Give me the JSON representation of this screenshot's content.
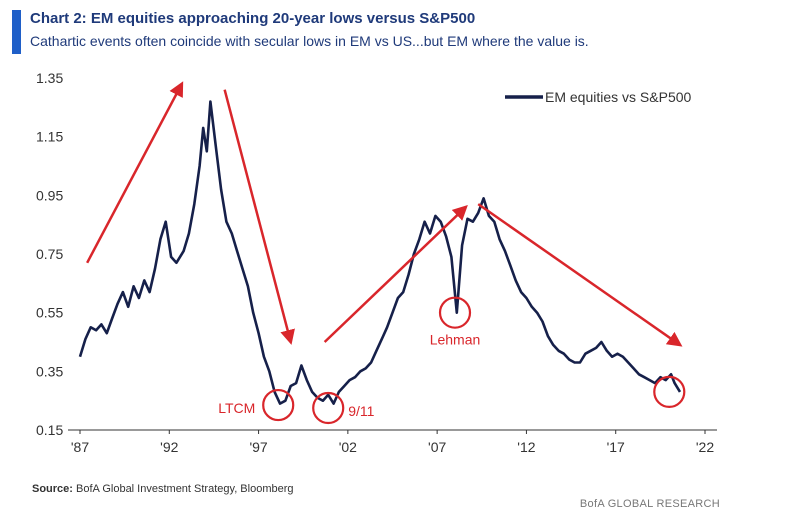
{
  "header": {
    "title": "Chart 2: EM equities approaching 20-year lows versus S&P500",
    "subtitle": "Cathartic events often coincide with secular lows in EM vs US...but EM where the value is."
  },
  "footer": {
    "source_label": "Source:",
    "source_text": "BofA Global Investment Strategy, Bloomberg",
    "brand": "BofA GLOBAL RESEARCH"
  },
  "colors": {
    "series": "#16204a",
    "annotation": "#d9262b",
    "title_accent": "#1f5fc8",
    "title_text": "#1f3a7a"
  },
  "chart_data": {
    "type": "line",
    "title": "",
    "xlabel": "",
    "ylabel": "",
    "ylim": [
      0.15,
      1.35
    ],
    "xlim": [
      1987,
      2022
    ],
    "yticks": [
      0.15,
      0.35,
      0.55,
      0.75,
      0.95,
      1.15,
      1.35
    ],
    "ytick_labels": [
      "0.15",
      "0.35",
      "0.55",
      "0.75",
      "0.95",
      "1.15",
      "1.35"
    ],
    "xticks": [
      1987,
      1992,
      1997,
      2002,
      2007,
      2012,
      2017,
      2022
    ],
    "xtick_labels": [
      "'87",
      "'92",
      "'97",
      "'02",
      "'07",
      "'12",
      "'17",
      "'22"
    ],
    "grid": false,
    "legend": {
      "position": "top-right"
    },
    "series": [
      {
        "name": "EM equities vs S&P500",
        "x": [
          1987.0,
          1987.3,
          1987.6,
          1987.9,
          1988.2,
          1988.5,
          1988.8,
          1989.1,
          1989.4,
          1989.7,
          1990.0,
          1990.3,
          1990.6,
          1990.9,
          1991.2,
          1991.5,
          1991.8,
          1992.1,
          1992.4,
          1992.8,
          1993.1,
          1993.4,
          1993.7,
          1993.9,
          1994.1,
          1994.3,
          1994.6,
          1994.9,
          1995.2,
          1995.5,
          1995.8,
          1996.1,
          1996.4,
          1996.7,
          1997.0,
          1997.3,
          1997.6,
          1997.9,
          1998.2,
          1998.5,
          1998.8,
          1999.1,
          1999.4,
          1999.7,
          2000.0,
          2000.3,
          2000.6,
          2000.9,
          2001.2,
          2001.5,
          2001.8,
          2002.1,
          2002.4,
          2002.7,
          2003.0,
          2003.3,
          2003.6,
          2003.9,
          2004.2,
          2004.5,
          2004.8,
          2005.1,
          2005.4,
          2005.7,
          2006.0,
          2006.3,
          2006.6,
          2006.9,
          2007.2,
          2007.5,
          2007.8,
          2008.1,
          2008.4,
          2008.7,
          2009.0,
          2009.3,
          2009.6,
          2009.9,
          2010.2,
          2010.5,
          2010.8,
          2011.1,
          2011.4,
          2011.7,
          2012.0,
          2012.3,
          2012.6,
          2012.9,
          2013.2,
          2013.5,
          2013.8,
          2014.1,
          2014.4,
          2014.7,
          2015.0,
          2015.3,
          2015.6,
          2015.9,
          2016.2,
          2016.5,
          2016.8,
          2017.1,
          2017.4,
          2017.7,
          2018.0,
          2018.3,
          2018.6,
          2018.9,
          2019.2,
          2019.5,
          2019.8,
          2020.1,
          2020.3,
          2020.6
        ],
        "values": [
          0.4,
          0.46,
          0.5,
          0.49,
          0.51,
          0.48,
          0.53,
          0.58,
          0.62,
          0.57,
          0.64,
          0.6,
          0.66,
          0.62,
          0.7,
          0.8,
          0.86,
          0.74,
          0.72,
          0.76,
          0.82,
          0.92,
          1.05,
          1.18,
          1.1,
          1.27,
          1.12,
          0.97,
          0.86,
          0.82,
          0.76,
          0.7,
          0.64,
          0.55,
          0.48,
          0.4,
          0.35,
          0.28,
          0.24,
          0.25,
          0.3,
          0.31,
          0.37,
          0.32,
          0.28,
          0.26,
          0.25,
          0.27,
          0.24,
          0.28,
          0.3,
          0.32,
          0.33,
          0.35,
          0.36,
          0.38,
          0.42,
          0.46,
          0.5,
          0.55,
          0.6,
          0.62,
          0.68,
          0.75,
          0.8,
          0.86,
          0.82,
          0.88,
          0.86,
          0.81,
          0.74,
          0.55,
          0.78,
          0.87,
          0.86,
          0.89,
          0.94,
          0.88,
          0.86,
          0.8,
          0.76,
          0.71,
          0.66,
          0.62,
          0.6,
          0.57,
          0.55,
          0.52,
          0.47,
          0.44,
          0.42,
          0.41,
          0.39,
          0.38,
          0.38,
          0.41,
          0.42,
          0.43,
          0.45,
          0.42,
          0.4,
          0.41,
          0.4,
          0.38,
          0.36,
          0.34,
          0.33,
          0.32,
          0.31,
          0.33,
          0.32,
          0.34,
          0.31,
          0.28
        ]
      }
    ],
    "annotations": [
      {
        "type": "circle",
        "x": 1998.1,
        "y": 0.235,
        "label": "LTCM"
      },
      {
        "type": "circle",
        "x": 2000.9,
        "y": 0.225,
        "label": "9/11"
      },
      {
        "type": "circle",
        "x": 2008.0,
        "y": 0.55,
        "label": "Lehman"
      },
      {
        "type": "circle",
        "x": 2020.0,
        "y": 0.28,
        "label": ""
      }
    ],
    "arrows": [
      {
        "from": [
          1987.4,
          0.72
        ],
        "to": [
          1992.7,
          1.33
        ]
      },
      {
        "from": [
          1995.1,
          1.31
        ],
        "to": [
          1998.8,
          0.45
        ]
      },
      {
        "from": [
          2000.7,
          0.45
        ],
        "to": [
          2008.6,
          0.91
        ]
      },
      {
        "from": [
          2009.3,
          0.92
        ],
        "to": [
          2020.6,
          0.44
        ]
      }
    ]
  }
}
